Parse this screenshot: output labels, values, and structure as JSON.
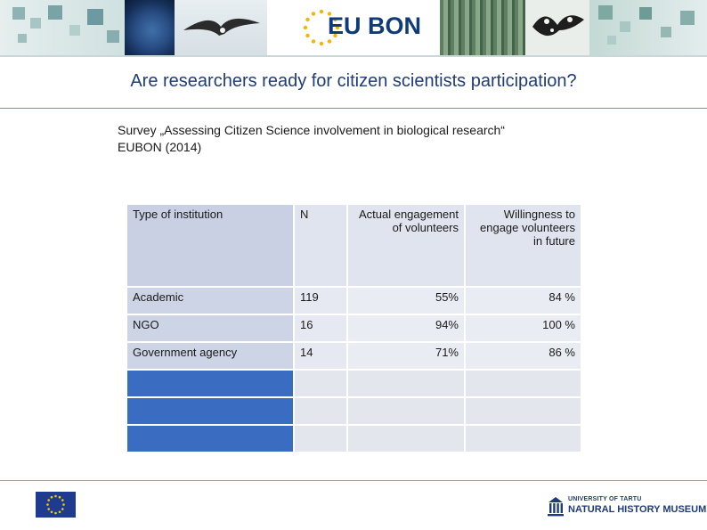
{
  "banner": {
    "logo_prefix": "EU",
    "logo_suffix": "BON"
  },
  "title": "Are researchers ready for citizen scientists participation?",
  "subtitle": {
    "line1": "Survey „Assessing Citizen Science involvement in biological research“",
    "line2": "EUBON (2014)"
  },
  "table": {
    "headers": [
      "Type of institution",
      "N",
      "Actual engagement of volunteers",
      "Willingness to engage volunteers in future"
    ],
    "rows": [
      [
        "Academic",
        "119",
        "55%",
        "84 %"
      ],
      [
        "NGO",
        "16",
        "94%",
        "100 %"
      ],
      [
        "Government agency",
        "14",
        "71%",
        "86 %"
      ]
    ],
    "empty_rows": 3
  },
  "footer": {
    "uni_top": "UNIVERSITY OF TARTU",
    "uni_main": "NATURAL HISTORY MUSEUM"
  },
  "colors": {
    "title": "#1f3d7a",
    "logo": "#0f3b7a",
    "table_first_col_empty": "#3a6cc2",
    "table_header": "#dfe4ef"
  }
}
